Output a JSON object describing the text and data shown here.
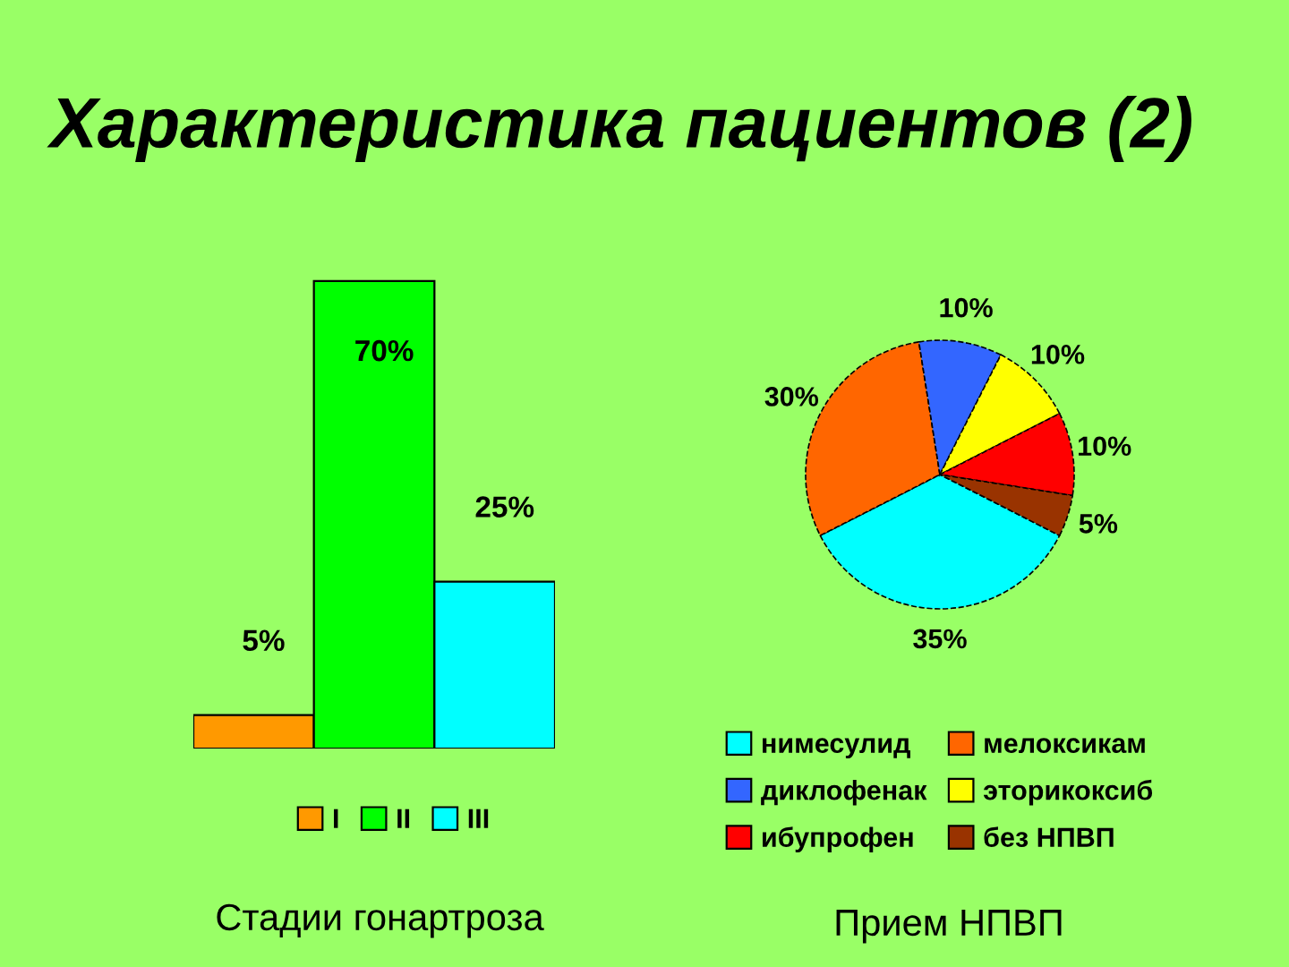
{
  "chart_data": [
    {
      "type": "bar",
      "title": "Характеристика пациентов (2)",
      "xlabel": "Стадии гонартроза",
      "categories": [
        null
      ],
      "legend": "bottom",
      "series": [
        {
          "name": "I",
          "color": "#ff9900",
          "values": [
            5
          ],
          "value_labels": [
            "5%"
          ]
        },
        {
          "name": "II",
          "color": "#00ff00",
          "values": [
            70
          ],
          "value_labels": [
            "70%"
          ]
        },
        {
          "name": "III",
          "color": "#00ffff",
          "values": [
            25
          ],
          "value_labels": [
            "25%"
          ]
        }
      ]
    },
    {
      "type": "pie",
      "xlabel": "Прием НПВП",
      "legend": "bottom",
      "categories": [
        "нимесулид",
        "мелоксикам",
        "диклофенак",
        "эторикоксиб",
        "ибупрофен",
        "без НПВП"
      ],
      "values": [
        35,
        30,
        10,
        10,
        10,
        5
      ],
      "value_labels": [
        "35%",
        "30%",
        "10%",
        "10%",
        "10%",
        "5%"
      ],
      "colors": [
        "#00ffff",
        "#ff6600",
        "#3366ff",
        "#ffff00",
        "#ff0000",
        "#993300"
      ]
    }
  ]
}
